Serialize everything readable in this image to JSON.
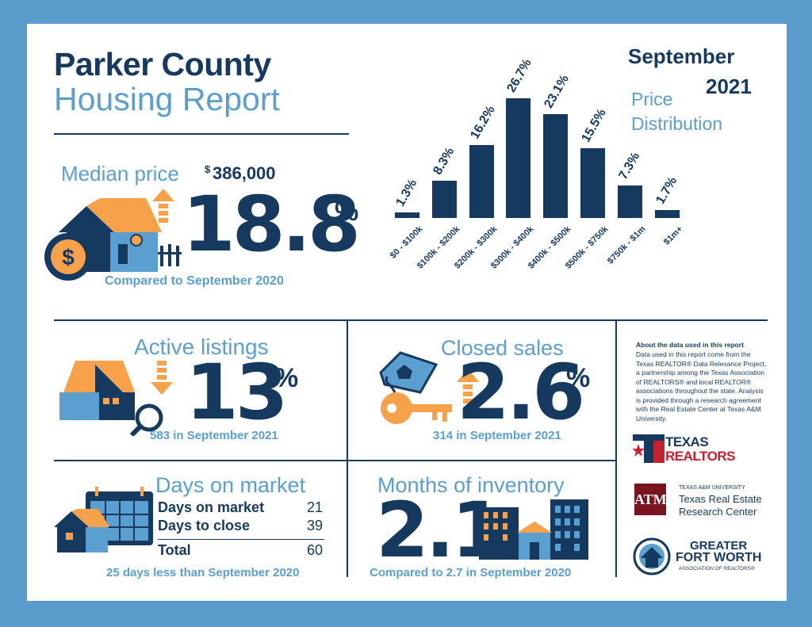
{
  "header": {
    "county": "Parker County",
    "report": "Housing Report",
    "month": "September",
    "year": "2021",
    "dist_title_1": "Price",
    "dist_title_2": "Distribution"
  },
  "median": {
    "label": "Median price",
    "dollar": "$",
    "value": "386,000",
    "change": "18.8",
    "pct": "%",
    "compare": "Compared to September 2020"
  },
  "chart_data": {
    "type": "bar",
    "categories": [
      "$0 - $100k",
      "$100k - $200k",
      "$200k - $300k",
      "$300k - $400k",
      "$400k - $500k",
      "$500k - $750k",
      "$750k - $1m",
      "$1m+"
    ],
    "values": [
      1.3,
      8.3,
      16.2,
      26.7,
      23.1,
      15.5,
      7.3,
      1.7
    ],
    "value_labels": [
      "1.3%",
      "8.3%",
      "16.2%",
      "26.7%",
      "23.1%",
      "15.5%",
      "7.3%",
      "1.7%"
    ],
    "title": "Price Distribution",
    "xlabel": "",
    "ylabel": "",
    "grid": false
  },
  "active": {
    "label": "Active listings",
    "change": "13",
    "pct": "%",
    "sub": "583 in September 2021"
  },
  "closed": {
    "label": "Closed sales",
    "change": "2.6",
    "pct": "%",
    "sub": "314 in September 2021"
  },
  "dom": {
    "label": "Days on market",
    "row1_label": "Days on market",
    "row1_value": "21",
    "row2_label": "Days to close",
    "row2_value": "39",
    "total_label": "Total",
    "total_value": "60",
    "sub": "25 days less than September 2020"
  },
  "inventory": {
    "label": "Months of inventory",
    "value": "2.1",
    "sub": "Compared to 2.7 in September 2020"
  },
  "about": {
    "title": "About the data used in this report",
    "body": "Data used in this report come from the Texas REALTOR® Data Relevance Project, a partnership among the Texas Association of REALTORS® and local REALTOR® associations throughout the state. Analysis is provided through a research agreement with the Real Estate Center at Texas A&M University."
  },
  "logos": {
    "texas_1": "TEXAS",
    "texas_2": "REALTORS",
    "tamu_1": "TEXAS A&M UNIVERSITY",
    "tamu_2": "Texas Real Estate",
    "tamu_3": "Research Center",
    "gfw_1": "GREATER",
    "gfw_2": "FORT WORTH",
    "gfw_3": "ASSOCIATION OF REALTORS®"
  },
  "colors": {
    "navy": "#163a5f",
    "light_blue": "#5b9fd0",
    "orange": "#f7a14b",
    "frame": "#5a9bcb"
  }
}
